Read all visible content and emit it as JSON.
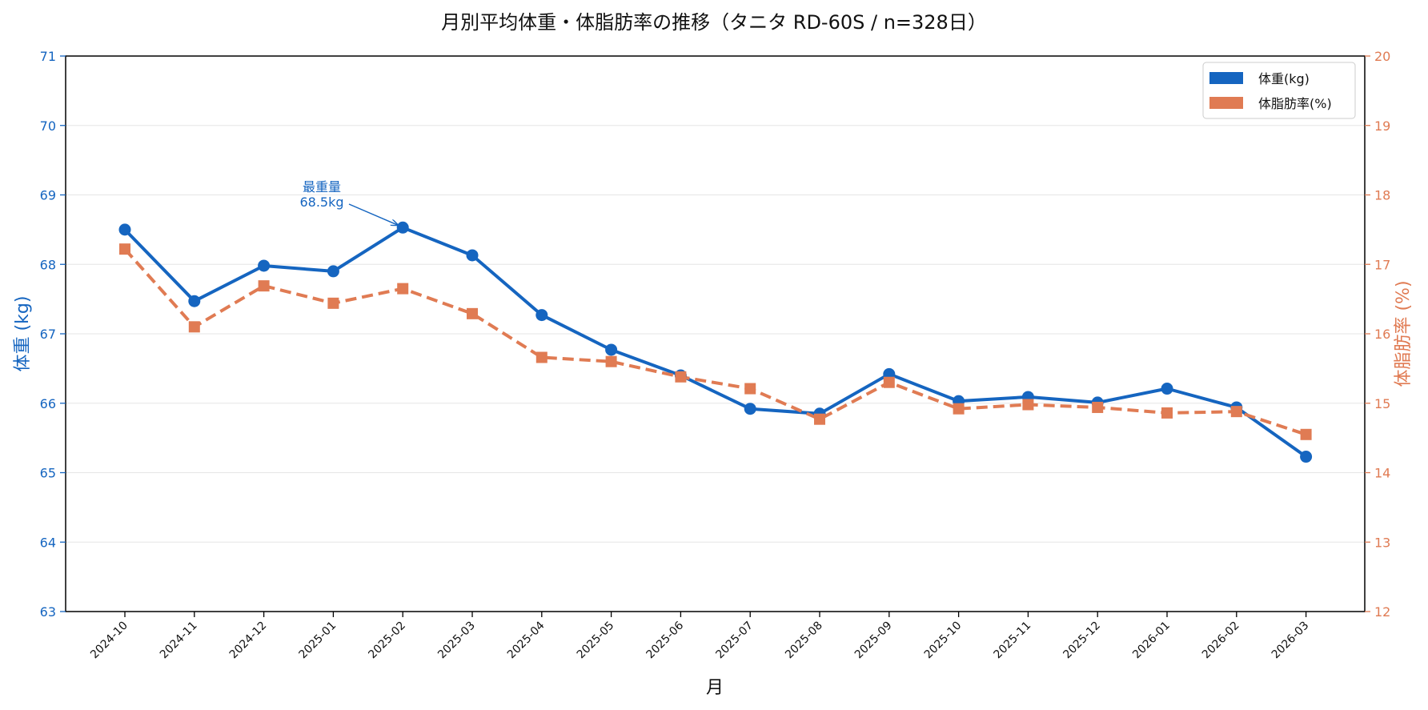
{
  "chart_data": {
    "type": "line",
    "title": "月別平均体重・体脂肪率の推移（タニタ RD-60S / n=328日）",
    "xlabel": "月",
    "ylabel_left": "体重 (kg)",
    "ylabel_right": "体脂肪率 (%)",
    "categories": [
      "2024-10",
      "2024-11",
      "2024-12",
      "2025-01",
      "2025-02",
      "2025-03",
      "2025-04",
      "2025-05",
      "2025-06",
      "2025-07",
      "2025-08",
      "2025-09",
      "2025-10",
      "2025-11",
      "2025-12",
      "2026-01",
      "2026-02",
      "2026-03"
    ],
    "ylim_left": [
      63,
      71
    ],
    "ylim_right": [
      12,
      20
    ],
    "yticks_left": [
      "63",
      "64",
      "65",
      "66",
      "67",
      "68",
      "69",
      "70",
      "71"
    ],
    "yticks_right": [
      "12",
      "13",
      "14",
      "15",
      "16",
      "17",
      "18",
      "19",
      "20"
    ],
    "grid": true,
    "legend_position": "top-right",
    "series": [
      {
        "name": "体重(kg)",
        "axis": "left",
        "color": "#1565c0",
        "line_style": "solid",
        "marker": "circle",
        "values": [
          68.5,
          67.47,
          67.98,
          67.9,
          68.53,
          68.13,
          67.27,
          66.77,
          66.4,
          65.92,
          65.85,
          66.42,
          66.03,
          66.09,
          66.01,
          66.21,
          65.94,
          65.23
        ]
      },
      {
        "name": "体脂肪率(%)",
        "axis": "right",
        "color": "#e07b53",
        "line_style": "dashed",
        "marker": "square",
        "values": [
          17.22,
          16.1,
          16.69,
          16.44,
          16.65,
          16.29,
          15.66,
          15.6,
          15.38,
          15.21,
          14.77,
          15.3,
          14.92,
          14.98,
          14.94,
          14.86,
          14.88,
          14.55
        ]
      }
    ],
    "annotation": {
      "line1": "最重量",
      "line2": "68.5kg",
      "target_category": "2025-02",
      "target_value": 68.53
    }
  }
}
